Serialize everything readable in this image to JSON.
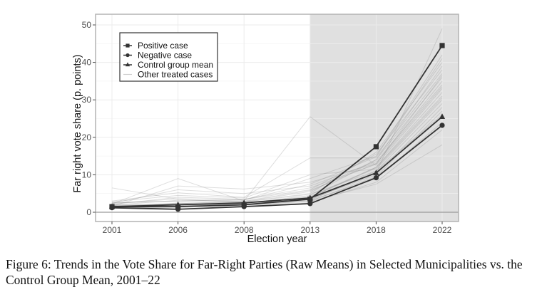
{
  "chart_data": {
    "type": "line",
    "title": "",
    "xlabel": "Election year",
    "ylabel": "Far right vote share (p. points)",
    "x": [
      "2001",
      "2006",
      "2008",
      "2013",
      "2018",
      "2022"
    ],
    "ylim": [
      -2.5,
      52
    ],
    "yticks": [
      0,
      10,
      20,
      30,
      40,
      50
    ],
    "grid": true,
    "shaded_region": {
      "from": "2013",
      "to": "end",
      "color": "#e0e0e0"
    },
    "legend_position": "top-left",
    "series": [
      {
        "name": "Positive case",
        "marker": "square",
        "color": "#333333",
        "values": [
          1.5,
          1.5,
          2.0,
          3.5,
          17.5,
          44.5
        ]
      },
      {
        "name": "Negative case",
        "marker": "circle",
        "color": "#333333",
        "values": [
          1.2,
          0.8,
          1.5,
          2.3,
          9.2,
          23.2
        ]
      },
      {
        "name": "Control group mean",
        "marker": "triangle",
        "color": "#333333",
        "values": [
          1.5,
          2.0,
          2.5,
          3.8,
          10.5,
          25.5
        ]
      },
      {
        "name": "Other treated cases",
        "marker": "none",
        "color": "#bdbdbd",
        "values": null
      }
    ],
    "other_treated_cases": [
      [
        1.8,
        1.6,
        2.4,
        4.5,
        14.0,
        36.0
      ],
      [
        2.0,
        2.2,
        2.8,
        5.0,
        16.0,
        40.0
      ],
      [
        1.4,
        1.9,
        2.1,
        3.2,
        11.0,
        29.0
      ],
      [
        2.5,
        3.0,
        3.4,
        6.0,
        15.5,
        38.0
      ],
      [
        1.2,
        1.4,
        1.9,
        3.0,
        9.5,
        27.0
      ],
      [
        6.5,
        3.5,
        2.6,
        4.0,
        12.0,
        31.0
      ],
      [
        2.2,
        9.0,
        3.0,
        25.5,
        12.5,
        33.0
      ],
      [
        1.6,
        7.0,
        6.2,
        8.0,
        13.0,
        35.0
      ],
      [
        3.0,
        5.2,
        4.0,
        14.5,
        14.5,
        37.0
      ],
      [
        1.0,
        2.5,
        1.6,
        2.6,
        8.0,
        22.0
      ],
      [
        2.8,
        4.5,
        3.8,
        10.0,
        11.5,
        30.0
      ],
      [
        1.3,
        1.8,
        2.2,
        3.6,
        10.0,
        28.0
      ],
      [
        2.4,
        6.0,
        5.0,
        7.0,
        13.5,
        34.0
      ],
      [
        1.7,
        2.0,
        2.5,
        4.2,
        12.0,
        32.0
      ],
      [
        1.9,
        3.2,
        2.9,
        5.5,
        14.0,
        39.0
      ],
      [
        1.1,
        1.3,
        1.8,
        2.9,
        7.5,
        18.0
      ],
      [
        2.6,
        2.9,
        3.2,
        9.0,
        15.0,
        42.0
      ],
      [
        1.5,
        2.4,
        2.7,
        4.8,
        11.0,
        26.0
      ],
      [
        2.1,
        4.0,
        3.5,
        6.5,
        12.8,
        36.5
      ],
      [
        1.4,
        1.7,
        2.0,
        3.4,
        10.5,
        49.0
      ],
      [
        1.8,
        2.3,
        3.0,
        5.8,
        13.0,
        33.5
      ],
      [
        1.2,
        1.5,
        1.9,
        3.1,
        9.0,
        24.0
      ],
      [
        2.3,
        3.6,
        3.3,
        7.5,
        14.8,
        41.0
      ],
      [
        1.6,
        2.1,
        2.4,
        4.0,
        11.8,
        30.5
      ]
    ]
  },
  "caption": {
    "text": "Figure 6: Trends in the Vote Share for Far-Right Parties (Raw Means) in Selected Municipalities vs. the Control Group Mean, 2001–22"
  }
}
